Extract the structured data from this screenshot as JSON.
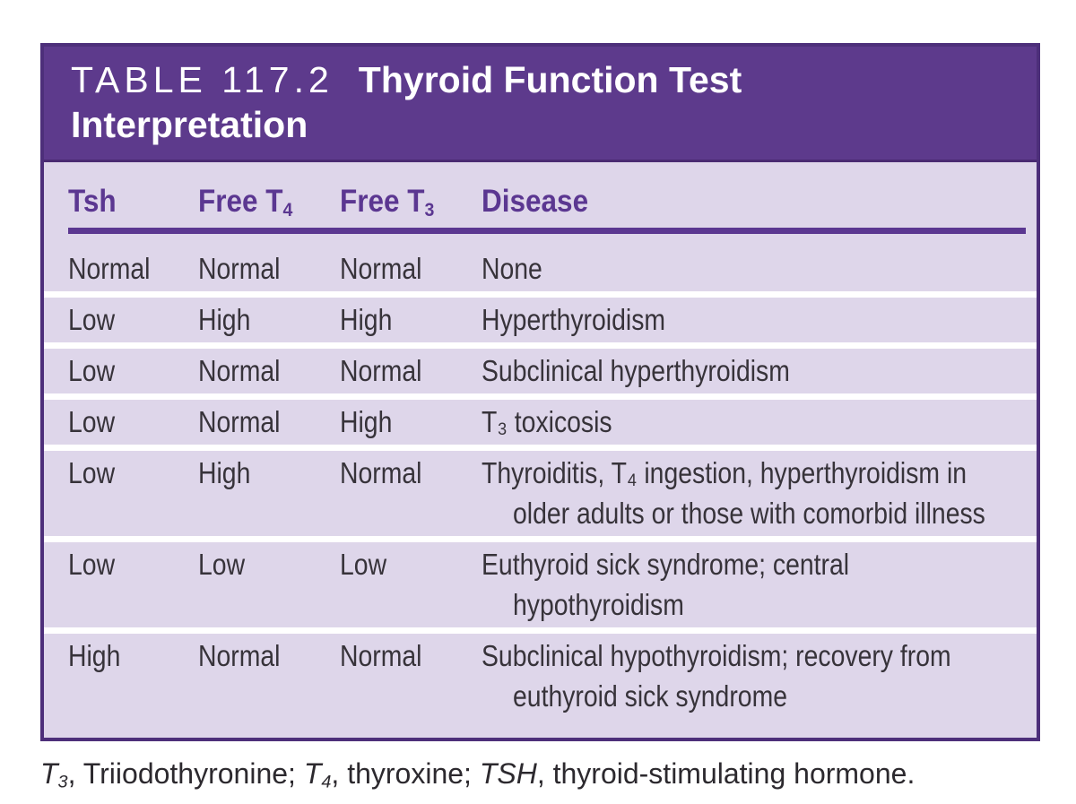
{
  "header": {
    "table_number": "TABLE 117.2",
    "title": "Thyroid Function Test Interpretation"
  },
  "table": {
    "columns": [
      {
        "label": "Tsh"
      },
      {
        "label": "Free T",
        "sub": "4"
      },
      {
        "label": "Free T",
        "sub": "3"
      },
      {
        "label": "Disease"
      }
    ],
    "rows": [
      {
        "tsh": "Normal",
        "free_t4": "Normal",
        "free_t3": "Normal",
        "disease_lines": [
          "None"
        ]
      },
      {
        "tsh": "Low",
        "free_t4": "High",
        "free_t3": "High",
        "disease_lines": [
          "Hyperthyroidism"
        ]
      },
      {
        "tsh": "Low",
        "free_t4": "Normal",
        "free_t3": "Normal",
        "disease_lines": [
          "Subclinical hyperthyroidism"
        ]
      },
      {
        "tsh": "Low",
        "free_t4": "Normal",
        "free_t3": "High",
        "disease_lines": [
          "T₃ toxicosis"
        ]
      },
      {
        "tsh": "Low",
        "free_t4": "High",
        "free_t3": "Normal",
        "disease_lines": [
          "Thyroiditis, T₄ ingestion, hyperthyroidism in",
          "older adults or those with comorbid illness"
        ]
      },
      {
        "tsh": "Low",
        "free_t4": "Low",
        "free_t3": "Low",
        "disease_lines": [
          "Euthyroid sick syndrome; central",
          "hypothyroidism"
        ]
      },
      {
        "tsh": "High",
        "free_t4": "Normal",
        "free_t3": "Normal",
        "disease_lines": [
          "Subclinical hypothyroidism; recovery from",
          "euthyroid sick syndrome"
        ]
      }
    ]
  },
  "footnote": {
    "abbr1": "T",
    "abbr1_sub": "3",
    "def1": ", Triiodothyronine; ",
    "abbr2": "T",
    "abbr2_sub": "4",
    "def2": ", thyroxine; ",
    "abbr3": "TSH",
    "def3": ", thyroid-stimulating hormone."
  },
  "colors": {
    "band_purple": "#5d3a8c",
    "border_purple": "#4d2f7a",
    "header_text_purple": "#5b3791",
    "body_lavender": "#ded6ea",
    "text": "#37333a"
  }
}
